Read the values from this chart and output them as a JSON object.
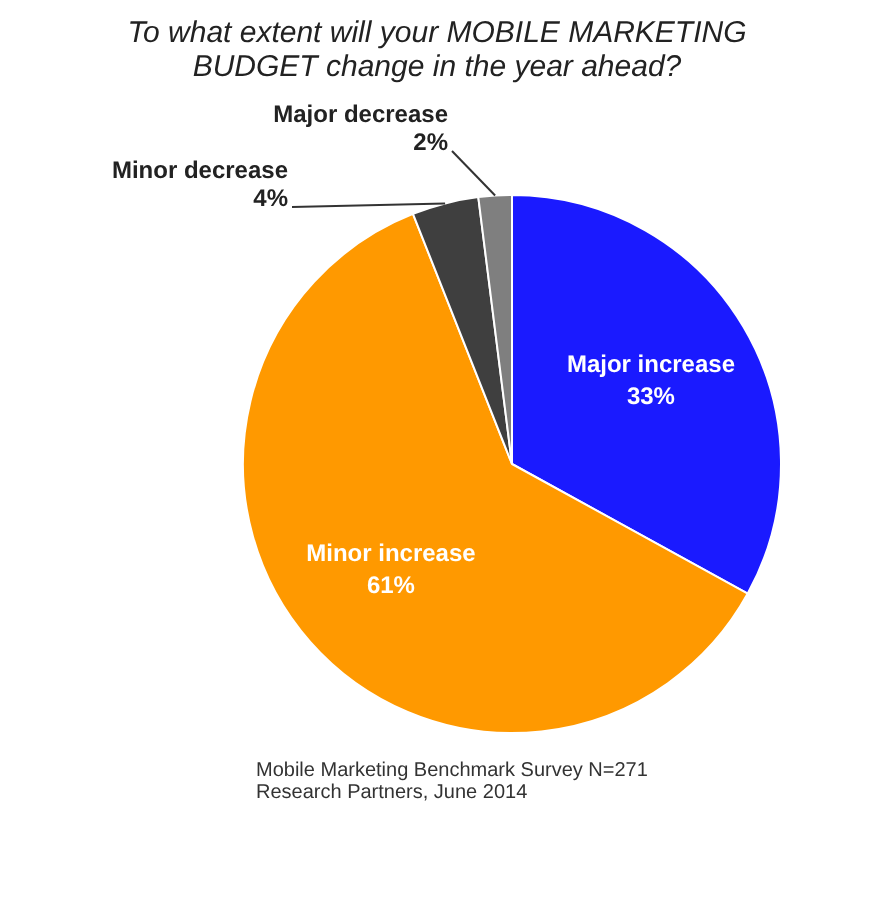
{
  "chart_data": {
    "type": "pie",
    "title": "To what extent will your MOBILE MARKETING BUDGET change in the year ahead?",
    "categories": [
      "Major increase",
      "Minor increase",
      "Minor decrease",
      "Major decrease"
    ],
    "values": [
      33,
      61,
      4,
      2
    ],
    "value_labels": [
      "33%",
      "61%",
      "4%",
      "2%"
    ],
    "colors": [
      "#1a1aff",
      "#ff9900",
      "#3f3f3f",
      "#7f7f7f"
    ],
    "annotations": [
      "Mobile Marketing Benchmark Survey N=271",
      "Research Partners, June 2014"
    ]
  }
}
